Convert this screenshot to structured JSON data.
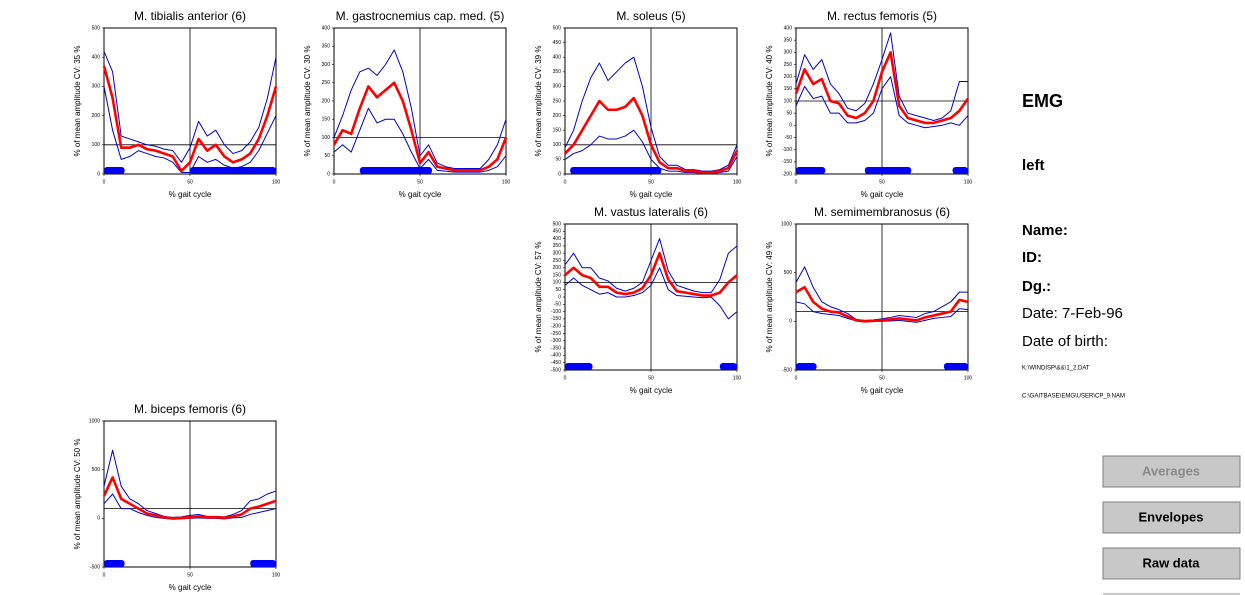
{
  "chart_data": [
    {
      "type": "line",
      "title": "M. tibialis anterior (6)",
      "ylabel": "% of mean amplitude  CV: 35 %",
      "xlabel": "% gait cycle",
      "x": [
        0,
        5,
        10,
        15,
        20,
        25,
        30,
        35,
        40,
        45,
        50,
        55,
        60,
        65,
        70,
        75,
        80,
        85,
        90,
        95,
        100
      ],
      "xlim": [
        0,
        100
      ],
      "xticks": [
        0,
        50,
        100
      ],
      "ylim": [
        0,
        500
      ],
      "yticks": [
        0,
        100,
        200,
        300,
        400,
        500
      ],
      "reference_x": 50,
      "reference_y": 100,
      "activity_color": "#0000ff",
      "activity": [
        [
          0,
          12
        ],
        [
          50,
          100
        ]
      ],
      "series": [
        {
          "name": "mean",
          "color": "#ff0000",
          "values": [
            370,
            260,
            90,
            90,
            100,
            85,
            80,
            70,
            60,
            10,
            40,
            120,
            80,
            100,
            60,
            40,
            50,
            70,
            120,
            200,
            300
          ]
        },
        {
          "name": "upper",
          "color": "#0000cc",
          "values": [
            420,
            350,
            130,
            120,
            110,
            100,
            95,
            85,
            80,
            40,
            90,
            180,
            130,
            150,
            100,
            70,
            80,
            110,
            160,
            260,
            400
          ]
        },
        {
          "name": "lower",
          "color": "#0000cc",
          "values": [
            300,
            150,
            50,
            60,
            80,
            70,
            60,
            55,
            40,
            5,
            5,
            60,
            40,
            50,
            30,
            20,
            25,
            40,
            80,
            140,
            200
          ]
        }
      ]
    },
    {
      "type": "line",
      "title": "M. gastrocnemius cap. med. (5)",
      "ylabel": "% of mean amplitude  CV: 30 %",
      "xlabel": "% gait cycle",
      "x": [
        0,
        5,
        10,
        15,
        20,
        25,
        30,
        35,
        40,
        45,
        50,
        55,
        60,
        65,
        70,
        75,
        80,
        85,
        90,
        95,
        100
      ],
      "xlim": [
        0,
        100
      ],
      "xticks": [
        0,
        50,
        100
      ],
      "ylim": [
        0,
        400
      ],
      "yticks": [
        0,
        50,
        100,
        150,
        200,
        250,
        300,
        350,
        400
      ],
      "reference_x": 50,
      "reference_y": 100,
      "activity_color": "#0000ff",
      "activity": [
        [
          15,
          57
        ]
      ],
      "series": [
        {
          "name": "mean",
          "color": "#ff0000",
          "values": [
            80,
            120,
            110,
            180,
            240,
            210,
            230,
            250,
            200,
            120,
            30,
            60,
            20,
            15,
            10,
            10,
            10,
            10,
            20,
            40,
            100
          ]
        },
        {
          "name": "upper",
          "color": "#0000cc",
          "values": [
            100,
            160,
            230,
            280,
            290,
            270,
            300,
            340,
            280,
            180,
            50,
            80,
            30,
            20,
            15,
            15,
            15,
            15,
            40,
            80,
            150
          ]
        },
        {
          "name": "lower",
          "color": "#0000cc",
          "values": [
            60,
            80,
            60,
            120,
            180,
            140,
            150,
            150,
            110,
            60,
            15,
            40,
            10,
            8,
            5,
            5,
            5,
            5,
            10,
            20,
            50
          ]
        }
      ]
    },
    {
      "type": "line",
      "title": "M. soleus (5)",
      "ylabel": "% of mean amplitude  CV: 39 %",
      "xlabel": "% gait cycle",
      "x": [
        0,
        5,
        10,
        15,
        20,
        25,
        30,
        35,
        40,
        45,
        50,
        55,
        60,
        65,
        70,
        75,
        80,
        85,
        90,
        95,
        100
      ],
      "xlim": [
        0,
        100
      ],
      "xticks": [
        0,
        50,
        100
      ],
      "ylim": [
        0,
        500
      ],
      "yticks": [
        0,
        50,
        100,
        150,
        200,
        250,
        300,
        350,
        400,
        450,
        500
      ],
      "reference_x": 50,
      "reference_y": 100,
      "activity_color": "#0000ff",
      "activity": [
        [
          3,
          56
        ]
      ],
      "series": [
        {
          "name": "mean",
          "color": "#ff0000",
          "values": [
            70,
            100,
            150,
            200,
            250,
            220,
            220,
            230,
            260,
            200,
            100,
            40,
            20,
            20,
            10,
            10,
            5,
            5,
            10,
            20,
            80
          ]
        },
        {
          "name": "upper",
          "color": "#0000cc",
          "values": [
            90,
            150,
            250,
            330,
            380,
            320,
            350,
            380,
            400,
            300,
            160,
            60,
            30,
            30,
            15,
            15,
            10,
            10,
            15,
            30,
            100
          ]
        },
        {
          "name": "lower",
          "color": "#0000cc",
          "values": [
            50,
            70,
            80,
            100,
            130,
            120,
            120,
            130,
            150,
            110,
            50,
            20,
            10,
            10,
            5,
            5,
            2,
            2,
            5,
            10,
            60
          ]
        }
      ]
    },
    {
      "type": "line",
      "title": "M. rectus femoris (5)",
      "ylabel": "% of mean amplitude  CV: 40 %",
      "xlabel": "% gait cycle",
      "x": [
        0,
        5,
        10,
        15,
        20,
        25,
        30,
        35,
        40,
        45,
        50,
        55,
        60,
        65,
        70,
        75,
        80,
        85,
        90,
        95,
        100
      ],
      "xlim": [
        0,
        100
      ],
      "xticks": [
        0,
        50,
        100
      ],
      "ylim": [
        -200,
        400
      ],
      "yticks": [
        -200,
        -150,
        -100,
        -50,
        0,
        50,
        100,
        150,
        200,
        250,
        300,
        350,
        400
      ],
      "reference_x": 50,
      "reference_y": 100,
      "activity_color": "#0000ff",
      "activity": [
        [
          0,
          17
        ],
        [
          40,
          67
        ],
        [
          91,
          100
        ]
      ],
      "series": [
        {
          "name": "mean",
          "color": "#ff0000",
          "values": [
            130,
            230,
            170,
            190,
            100,
            90,
            40,
            30,
            50,
            100,
            220,
            300,
            80,
            30,
            20,
            10,
            10,
            20,
            30,
            60,
            110
          ]
        },
        {
          "name": "upper",
          "color": "#0000cc",
          "values": [
            170,
            290,
            230,
            270,
            170,
            130,
            70,
            60,
            90,
            170,
            270,
            380,
            120,
            50,
            40,
            30,
            20,
            30,
            60,
            180,
            180
          ]
        },
        {
          "name": "lower",
          "color": "#0000cc",
          "values": [
            80,
            160,
            110,
            120,
            50,
            50,
            10,
            10,
            20,
            50,
            150,
            200,
            40,
            10,
            0,
            -10,
            -5,
            0,
            10,
            0,
            40
          ]
        }
      ]
    },
    {
      "type": "line",
      "title": "M. vastus lateralis (6)",
      "ylabel": "% of mean amplitude  CV: 57 %",
      "xlabel": "% gait cycle",
      "x": [
        0,
        5,
        10,
        15,
        20,
        25,
        30,
        35,
        40,
        45,
        50,
        55,
        60,
        65,
        70,
        75,
        80,
        85,
        90,
        95,
        100
      ],
      "xlim": [
        0,
        100
      ],
      "xticks": [
        0,
        50,
        100
      ],
      "ylim": [
        -500,
        500
      ],
      "yticks": [
        -500,
        -450,
        -400,
        -350,
        -300,
        -250,
        -200,
        -150,
        -100,
        -50,
        0,
        50,
        100,
        150,
        200,
        250,
        300,
        350,
        400,
        450,
        500
      ],
      "reference_x": 50,
      "reference_y": 100,
      "activity_color": "#0000ff",
      "activity": [
        [
          0,
          16
        ],
        [
          90,
          100
        ]
      ],
      "series": [
        {
          "name": "mean",
          "color": "#ff0000",
          "values": [
            150,
            200,
            150,
            130,
            70,
            70,
            30,
            20,
            30,
            60,
            150,
            300,
            120,
            40,
            30,
            20,
            10,
            10,
            30,
            100,
            150
          ]
        },
        {
          "name": "upper",
          "color": "#0000cc",
          "values": [
            220,
            300,
            200,
            200,
            130,
            110,
            60,
            40,
            60,
            100,
            250,
            400,
            180,
            80,
            60,
            40,
            30,
            30,
            120,
            300,
            350
          ]
        },
        {
          "name": "lower",
          "color": "#0000cc",
          "values": [
            80,
            130,
            80,
            50,
            20,
            30,
            0,
            0,
            10,
            30,
            80,
            200,
            50,
            10,
            5,
            0,
            -5,
            0,
            -60,
            -150,
            -100
          ]
        }
      ]
    },
    {
      "type": "line",
      "title": "M. semimembranosus (6)",
      "ylabel": "% of mean amplitude  CV: 49 %",
      "xlabel": "% gait cycle",
      "x": [
        0,
        5,
        10,
        15,
        20,
        25,
        30,
        35,
        40,
        45,
        50,
        55,
        60,
        65,
        70,
        75,
        80,
        85,
        90,
        95,
        100
      ],
      "xlim": [
        0,
        100
      ],
      "xticks": [
        0,
        50,
        100
      ],
      "ylim": [
        -500,
        1000
      ],
      "yticks": [
        -500,
        0,
        500,
        1000
      ],
      "reference_x": 50,
      "reference_y": 100,
      "activity_color": "#0000ff",
      "activity": [
        [
          0,
          12
        ],
        [
          86,
          100
        ]
      ],
      "series": [
        {
          "name": "mean",
          "color": "#ff0000",
          "values": [
            300,
            350,
            200,
            130,
            100,
            90,
            50,
            10,
            0,
            5,
            10,
            20,
            30,
            20,
            10,
            40,
            60,
            80,
            100,
            220,
            200
          ]
        },
        {
          "name": "upper",
          "color": "#0000cc",
          "values": [
            400,
            560,
            350,
            200,
            150,
            120,
            80,
            20,
            10,
            15,
            25,
            40,
            60,
            50,
            40,
            80,
            100,
            150,
            200,
            300,
            300
          ]
        },
        {
          "name": "lower",
          "color": "#0000cc",
          "values": [
            200,
            180,
            100,
            80,
            70,
            60,
            30,
            5,
            -5,
            0,
            0,
            5,
            10,
            0,
            -10,
            10,
            30,
            40,
            50,
            130,
            120
          ]
        }
      ]
    },
    {
      "type": "line",
      "title": "M. biceps femoris (6)",
      "ylabel": "% of mean amplitude  CV: 50 %",
      "xlabel": "% gait cycle",
      "x": [
        0,
        5,
        10,
        15,
        20,
        25,
        30,
        35,
        40,
        45,
        50,
        55,
        60,
        65,
        70,
        75,
        80,
        85,
        90,
        95,
        100
      ],
      "xlim": [
        0,
        100
      ],
      "xticks": [
        0,
        50,
        100
      ],
      "ylim": [
        -500,
        1000
      ],
      "yticks": [
        -500,
        0,
        500,
        1000
      ],
      "reference_x": 50,
      "reference_y": 100,
      "activity_color": "#0000ff",
      "activity": [
        [
          0,
          12
        ],
        [
          85,
          100
        ]
      ],
      "series": [
        {
          "name": "mean",
          "color": "#ff0000",
          "values": [
            230,
            420,
            200,
            150,
            100,
            50,
            30,
            10,
            0,
            5,
            10,
            20,
            10,
            10,
            5,
            20,
            40,
            100,
            120,
            150,
            180
          ]
        },
        {
          "name": "upper",
          "color": "#0000cc",
          "values": [
            330,
            700,
            330,
            200,
            150,
            80,
            50,
            20,
            10,
            15,
            30,
            40,
            20,
            20,
            15,
            40,
            80,
            180,
            200,
            250,
            280
          ]
        },
        {
          "name": "lower",
          "color": "#0000cc",
          "values": [
            150,
            250,
            100,
            100,
            60,
            30,
            10,
            0,
            -10,
            -5,
            0,
            5,
            0,
            0,
            -5,
            5,
            10,
            40,
            60,
            80,
            100
          ]
        }
      ]
    }
  ],
  "panel": {
    "heading": "EMG",
    "side": "left",
    "name": "Name:",
    "id": "ID:",
    "dg": "Dg.:",
    "date": "Date: 7-Feb-96",
    "birth": "Date of birth:",
    "file1": "K:\\WINDISP\\&&\\1_2.DAT",
    "file2": "C:\\GAITBASE\\EMG\\USER\\CP_9.NAM"
  },
  "buttons": {
    "averages": "Averages",
    "envelopes": "Envelopes",
    "raw": "Raw data"
  }
}
